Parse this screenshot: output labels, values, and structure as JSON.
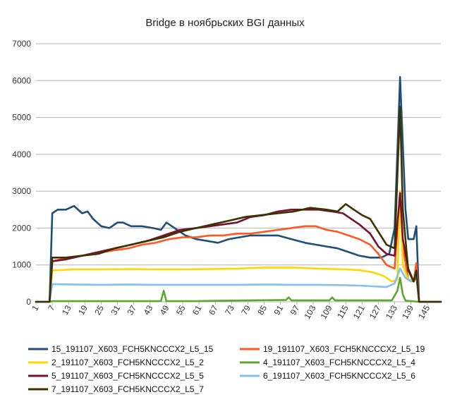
{
  "chart_data": {
    "type": "line",
    "title": "Bridge в ноябрьских BGI данных",
    "ylim": [
      0,
      7000
    ],
    "yticks": [
      "0",
      "1000",
      "2000",
      "3000",
      "4000",
      "5000",
      "6000",
      "7000"
    ],
    "x_start": 1,
    "x_end": 150,
    "xtick_labels": [
      "1",
      "7",
      "13",
      "19",
      "25",
      "31",
      "37",
      "43",
      "49",
      "55",
      "61",
      "67",
      "73",
      "79",
      "85",
      "91",
      "97",
      "103",
      "109",
      "115",
      "121",
      "127",
      "133",
      "139",
      "145"
    ],
    "grid": "horizontal",
    "legend_position": "bottom",
    "series": [
      {
        "name": "15_191107_X603_FCH5KNCCCX2_L5_15",
        "color": "#1f4e79",
        "points": [
          [
            1,
            0
          ],
          [
            6,
            0
          ],
          [
            7,
            2400
          ],
          [
            9,
            2500
          ],
          [
            12,
            2500
          ],
          [
            15,
            2600
          ],
          [
            18,
            2400
          ],
          [
            20,
            2450
          ],
          [
            22,
            2250
          ],
          [
            25,
            2050
          ],
          [
            28,
            2000
          ],
          [
            31,
            2150
          ],
          [
            33,
            2150
          ],
          [
            36,
            2050
          ],
          [
            40,
            2050
          ],
          [
            44,
            2000
          ],
          [
            47,
            1950
          ],
          [
            49,
            2150
          ],
          [
            52,
            2000
          ],
          [
            56,
            1800
          ],
          [
            60,
            1700
          ],
          [
            64,
            1650
          ],
          [
            68,
            1600
          ],
          [
            72,
            1700
          ],
          [
            76,
            1750
          ],
          [
            80,
            1800
          ],
          [
            85,
            1800
          ],
          [
            90,
            1800
          ],
          [
            95,
            1700
          ],
          [
            100,
            1600
          ],
          [
            104,
            1550
          ],
          [
            108,
            1500
          ],
          [
            112,
            1450
          ],
          [
            116,
            1350
          ],
          [
            120,
            1250
          ],
          [
            124,
            1200
          ],
          [
            128,
            1200
          ],
          [
            131,
            1300
          ],
          [
            133,
            2000
          ],
          [
            135,
            6100
          ],
          [
            137,
            2500
          ],
          [
            138,
            1700
          ],
          [
            140,
            1700
          ],
          [
            141,
            2050
          ],
          [
            142,
            0
          ],
          [
            150,
            0
          ]
        ]
      },
      {
        "name": "19_191107_X603_FCH5KNCCCX2_L5_19",
        "color": "#ff5722",
        "points": [
          [
            1,
            0
          ],
          [
            6,
            0
          ],
          [
            7,
            1100
          ],
          [
            10,
            1150
          ],
          [
            14,
            1200
          ],
          [
            18,
            1250
          ],
          [
            22,
            1300
          ],
          [
            26,
            1350
          ],
          [
            30,
            1400
          ],
          [
            35,
            1450
          ],
          [
            40,
            1550
          ],
          [
            45,
            1600
          ],
          [
            50,
            1700
          ],
          [
            55,
            1750
          ],
          [
            60,
            1750
          ],
          [
            65,
            1800
          ],
          [
            70,
            1800
          ],
          [
            75,
            1850
          ],
          [
            80,
            1850
          ],
          [
            85,
            1900
          ],
          [
            90,
            1950
          ],
          [
            95,
            2000
          ],
          [
            100,
            2050
          ],
          [
            104,
            2050
          ],
          [
            108,
            1950
          ],
          [
            112,
            1900
          ],
          [
            116,
            1800
          ],
          [
            120,
            1700
          ],
          [
            124,
            1550
          ],
          [
            127,
            1300
          ],
          [
            130,
            1000
          ],
          [
            133,
            900
          ],
          [
            135,
            3000
          ],
          [
            136,
            1500
          ],
          [
            138,
            600
          ],
          [
            140,
            550
          ],
          [
            141,
            1050
          ],
          [
            142,
            0
          ],
          [
            150,
            0
          ]
        ]
      },
      {
        "name": "2_191107_X603_FCH5KNCCCX2_L5_2",
        "color": "#ffd600",
        "points": [
          [
            1,
            0
          ],
          [
            6,
            0
          ],
          [
            7,
            850
          ],
          [
            15,
            880
          ],
          [
            25,
            880
          ],
          [
            35,
            890
          ],
          [
            45,
            880
          ],
          [
            55,
            880
          ],
          [
            65,
            890
          ],
          [
            75,
            900
          ],
          [
            85,
            930
          ],
          [
            95,
            930
          ],
          [
            105,
            900
          ],
          [
            115,
            880
          ],
          [
            120,
            860
          ],
          [
            125,
            800
          ],
          [
            129,
            700
          ],
          [
            132,
            550
          ],
          [
            134,
            600
          ],
          [
            135,
            3000
          ],
          [
            136,
            1000
          ],
          [
            138,
            600
          ],
          [
            140,
            600
          ],
          [
            141,
            800
          ],
          [
            142,
            0
          ],
          [
            150,
            0
          ]
        ]
      },
      {
        "name": "4_191107_X603_FCH5KNCCCX2_L5_4",
        "color": "#5ea62e",
        "points": [
          [
            1,
            0
          ],
          [
            6,
            0
          ],
          [
            7,
            20
          ],
          [
            47,
            20
          ],
          [
            48,
            300
          ],
          [
            49,
            20
          ],
          [
            60,
            20
          ],
          [
            70,
            30
          ],
          [
            80,
            40
          ],
          [
            93,
            50
          ],
          [
            94,
            120
          ],
          [
            95,
            40
          ],
          [
            109,
            40
          ],
          [
            110,
            120
          ],
          [
            111,
            40
          ],
          [
            132,
            40
          ],
          [
            134,
            300
          ],
          [
            135,
            650
          ],
          [
            136,
            200
          ],
          [
            137,
            30
          ],
          [
            142,
            0
          ],
          [
            150,
            0
          ]
        ]
      },
      {
        "name": "5_191107_X603_FCH5KNCCCX2_L5_5",
        "color": "#7b0f2e",
        "points": [
          [
            1,
            0
          ],
          [
            6,
            0
          ],
          [
            7,
            1100
          ],
          [
            12,
            1150
          ],
          [
            18,
            1250
          ],
          [
            24,
            1350
          ],
          [
            30,
            1450
          ],
          [
            36,
            1550
          ],
          [
            42,
            1650
          ],
          [
            48,
            1800
          ],
          [
            54,
            1950
          ],
          [
            60,
            2000
          ],
          [
            65,
            2050
          ],
          [
            70,
            2100
          ],
          [
            75,
            2150
          ],
          [
            80,
            2300
          ],
          [
            85,
            2350
          ],
          [
            90,
            2450
          ],
          [
            95,
            2500
          ],
          [
            100,
            2500
          ],
          [
            105,
            2500
          ],
          [
            110,
            2450
          ],
          [
            114,
            2400
          ],
          [
            117,
            2250
          ],
          [
            120,
            2100
          ],
          [
            124,
            1850
          ],
          [
            127,
            1500
          ],
          [
            130,
            1300
          ],
          [
            133,
            1250
          ],
          [
            135,
            2950
          ],
          [
            136,
            1700
          ],
          [
            138,
            900
          ],
          [
            140,
            550
          ],
          [
            141,
            700
          ],
          [
            142,
            0
          ],
          [
            150,
            0
          ]
        ]
      },
      {
        "name": "6_191107_X603_FCH5KNCCCX2_L5_6",
        "color": "#82c0f0",
        "points": [
          [
            1,
            0
          ],
          [
            6,
            0
          ],
          [
            7,
            480
          ],
          [
            15,
            470
          ],
          [
            25,
            460
          ],
          [
            35,
            470
          ],
          [
            45,
            460
          ],
          [
            55,
            460
          ],
          [
            65,
            460
          ],
          [
            75,
            460
          ],
          [
            85,
            470
          ],
          [
            95,
            460
          ],
          [
            105,
            460
          ],
          [
            115,
            450
          ],
          [
            120,
            440
          ],
          [
            125,
            420
          ],
          [
            130,
            400
          ],
          [
            133,
            500
          ],
          [
            135,
            900
          ],
          [
            137,
            650
          ],
          [
            139,
            550
          ],
          [
            141,
            750
          ],
          [
            142,
            0
          ],
          [
            150,
            0
          ]
        ]
      },
      {
        "name": "7_191107_X603_FCH5KNCCCX2_L5_7",
        "color": "#3a3300",
        "points": [
          [
            1,
            0
          ],
          [
            6,
            0
          ],
          [
            7,
            1200
          ],
          [
            12,
            1200
          ],
          [
            18,
            1250
          ],
          [
            24,
            1300
          ],
          [
            30,
            1450
          ],
          [
            36,
            1550
          ],
          [
            42,
            1650
          ],
          [
            48,
            1750
          ],
          [
            54,
            1900
          ],
          [
            60,
            2000
          ],
          [
            66,
            2100
          ],
          [
            72,
            2200
          ],
          [
            78,
            2300
          ],
          [
            84,
            2350
          ],
          [
            90,
            2400
          ],
          [
            96,
            2450
          ],
          [
            102,
            2550
          ],
          [
            108,
            2500
          ],
          [
            112,
            2450
          ],
          [
            115,
            2650
          ],
          [
            118,
            2500
          ],
          [
            121,
            2350
          ],
          [
            124,
            2250
          ],
          [
            127,
            1900
          ],
          [
            130,
            1550
          ],
          [
            133,
            1450
          ],
          [
            135,
            5300
          ],
          [
            136,
            2500
          ],
          [
            138,
            850
          ],
          [
            140,
            550
          ],
          [
            141,
            850
          ],
          [
            142,
            0
          ],
          [
            150,
            0
          ]
        ]
      }
    ]
  }
}
